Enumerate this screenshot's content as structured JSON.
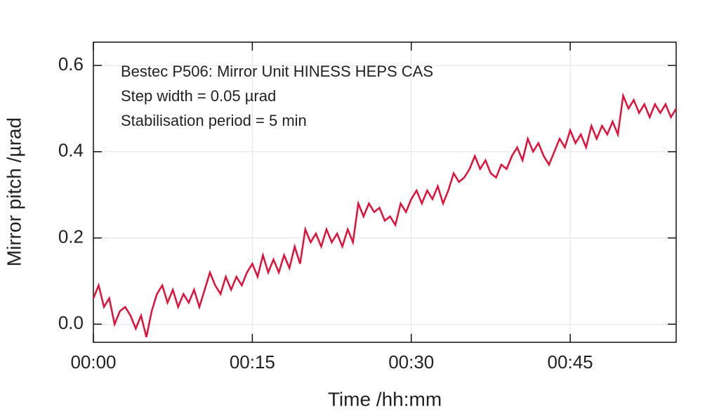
{
  "chart_data": {
    "type": "line",
    "annotations": [
      "Bestec P506: Mirror Unit HINESS HEPS CAS",
      "Step width = 0.05 µrad",
      "Stabilisation period = 5 min"
    ],
    "xlabel": "Time /hh:mm",
    "ylabel": "Mirror pitch /µrad",
    "xlim": [
      0,
      55
    ],
    "ylim": [
      -0.042,
      0.654
    ],
    "xticks": [
      {
        "value": 0,
        "label": "00:00"
      },
      {
        "value": 15,
        "label": "00:15"
      },
      {
        "value": 30,
        "label": "00:30"
      },
      {
        "value": 45,
        "label": "00:45"
      }
    ],
    "yticks": [
      {
        "value": 0,
        "label": "0.0"
      },
      {
        "value": 0.2,
        "label": "0.2"
      },
      {
        "value": 0.4,
        "label": "0.4"
      },
      {
        "value": 0.6,
        "label": "0.6"
      }
    ],
    "grid": true,
    "x": [
      0,
      0.5,
      1,
      1.5,
      2,
      2.5,
      3,
      3.5,
      4,
      4.5,
      5,
      5.5,
      6,
      6.5,
      7,
      7.5,
      8,
      8.5,
      9,
      9.5,
      10,
      10.5,
      11,
      11.5,
      12,
      12.5,
      13,
      13.5,
      14,
      14.5,
      15,
      15.5,
      16,
      16.5,
      17,
      17.5,
      18,
      18.5,
      19,
      19.5,
      20,
      20.5,
      21,
      21.5,
      22,
      22.5,
      23,
      23.5,
      24,
      24.5,
      25,
      25.5,
      26,
      26.5,
      27,
      27.5,
      28,
      28.5,
      29,
      29.5,
      30,
      30.5,
      31,
      31.5,
      32,
      32.5,
      33,
      33.5,
      34,
      34.5,
      35,
      35.5,
      36,
      36.5,
      37,
      37.5,
      38,
      38.5,
      39,
      39.5,
      40,
      40.5,
      41,
      41.5,
      42,
      42.5,
      43,
      43.5,
      44,
      44.5,
      45,
      45.5,
      46,
      46.5,
      47,
      47.5,
      48,
      48.5,
      49,
      49.5,
      50,
      50.5,
      51,
      51.5,
      52,
      52.5,
      53,
      53.5,
      54,
      54.5,
      55
    ],
    "series": [
      {
        "color": "#e0103a",
        "values": [
          0.06,
          0.09,
          0.04,
          0.06,
          0.0,
          0.03,
          0.04,
          0.02,
          -0.01,
          0.02,
          -0.03,
          0.03,
          0.07,
          0.09,
          0.05,
          0.08,
          0.04,
          0.07,
          0.05,
          0.08,
          0.04,
          0.08,
          0.12,
          0.09,
          0.07,
          0.11,
          0.08,
          0.11,
          0.09,
          0.12,
          0.14,
          0.11,
          0.16,
          0.12,
          0.15,
          0.12,
          0.16,
          0.13,
          0.18,
          0.14,
          0.22,
          0.19,
          0.21,
          0.18,
          0.22,
          0.19,
          0.21,
          0.18,
          0.22,
          0.19,
          0.28,
          0.25,
          0.28,
          0.26,
          0.27,
          0.24,
          0.25,
          0.23,
          0.28,
          0.26,
          0.29,
          0.31,
          0.28,
          0.31,
          0.29,
          0.32,
          0.28,
          0.31,
          0.35,
          0.33,
          0.34,
          0.36,
          0.39,
          0.36,
          0.38,
          0.35,
          0.34,
          0.37,
          0.36,
          0.39,
          0.41,
          0.38,
          0.43,
          0.4,
          0.42,
          0.39,
          0.37,
          0.4,
          0.43,
          0.41,
          0.45,
          0.42,
          0.44,
          0.41,
          0.46,
          0.43,
          0.46,
          0.44,
          0.47,
          0.44,
          0.53,
          0.5,
          0.52,
          0.49,
          0.51,
          0.48,
          0.51,
          0.49,
          0.51,
          0.48,
          0.5
        ]
      }
    ]
  }
}
